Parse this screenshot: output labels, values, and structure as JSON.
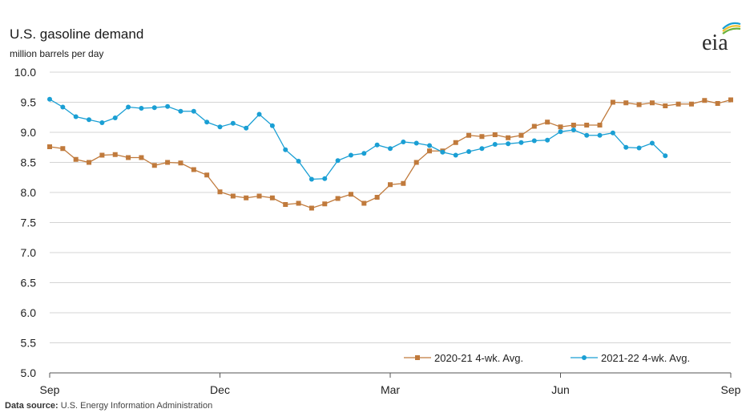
{
  "header": {
    "title": "U.S. gasoline demand",
    "subtitle": "million barrels per day"
  },
  "logo": {
    "text": "eia",
    "icon": "eia-logo-icon"
  },
  "footer": {
    "source_label": "Data source:",
    "source_text": "U.S. Energy Information Administration"
  },
  "chart_data": {
    "type": "line",
    "title": "U.S. gasoline demand",
    "ylabel": "million barrels per day",
    "xlabel": "",
    "ylim": [
      5.0,
      10.0
    ],
    "yticks": [
      "10.0",
      "9.5",
      "9.0",
      "8.5",
      "8.0",
      "7.5",
      "7.0",
      "6.5",
      "6.0",
      "5.5",
      "5.0"
    ],
    "xticks": [
      "Sep",
      "Dec",
      "Mar",
      "Jun",
      "Sep"
    ],
    "grid": true,
    "legend_position": "bottom-right",
    "series": [
      {
        "name": "2020-21  4-wk. Avg.",
        "color": "#c07a3c",
        "marker": "square",
        "values": [
          8.76,
          8.73,
          8.55,
          8.5,
          8.62,
          8.63,
          8.58,
          8.58,
          8.45,
          8.5,
          8.49,
          8.38,
          8.29,
          8.01,
          7.94,
          7.91,
          7.94,
          7.91,
          7.8,
          7.82,
          7.74,
          7.81,
          7.9,
          7.97,
          7.82,
          7.92,
          8.13,
          8.15,
          8.5,
          8.69,
          8.69,
          8.83,
          8.95,
          8.93,
          8.96,
          8.91,
          8.95,
          9.1,
          9.17,
          9.09,
          9.12,
          9.12,
          9.12,
          9.5,
          9.49,
          9.46,
          9.49,
          9.44,
          9.47,
          9.47,
          9.53,
          9.48,
          9.54
        ]
      },
      {
        "name": "2021-22  4-wk. Avg.",
        "color": "#1a9fd4",
        "marker": "circle",
        "values": [
          9.55,
          9.42,
          9.26,
          9.21,
          9.16,
          9.24,
          9.42,
          9.4,
          9.41,
          9.43,
          9.35,
          9.35,
          9.17,
          9.09,
          9.15,
          9.07,
          9.3,
          9.11,
          8.71,
          8.52,
          8.22,
          8.23,
          8.53,
          8.62,
          8.65,
          8.79,
          8.73,
          8.84,
          8.82,
          8.78,
          8.67,
          8.62,
          8.68,
          8.73,
          8.8,
          8.81,
          8.83,
          8.86,
          8.87,
          9.01,
          9.04,
          8.95,
          8.95,
          8.99,
          8.75,
          8.74,
          8.82,
          8.61
        ]
      }
    ]
  }
}
